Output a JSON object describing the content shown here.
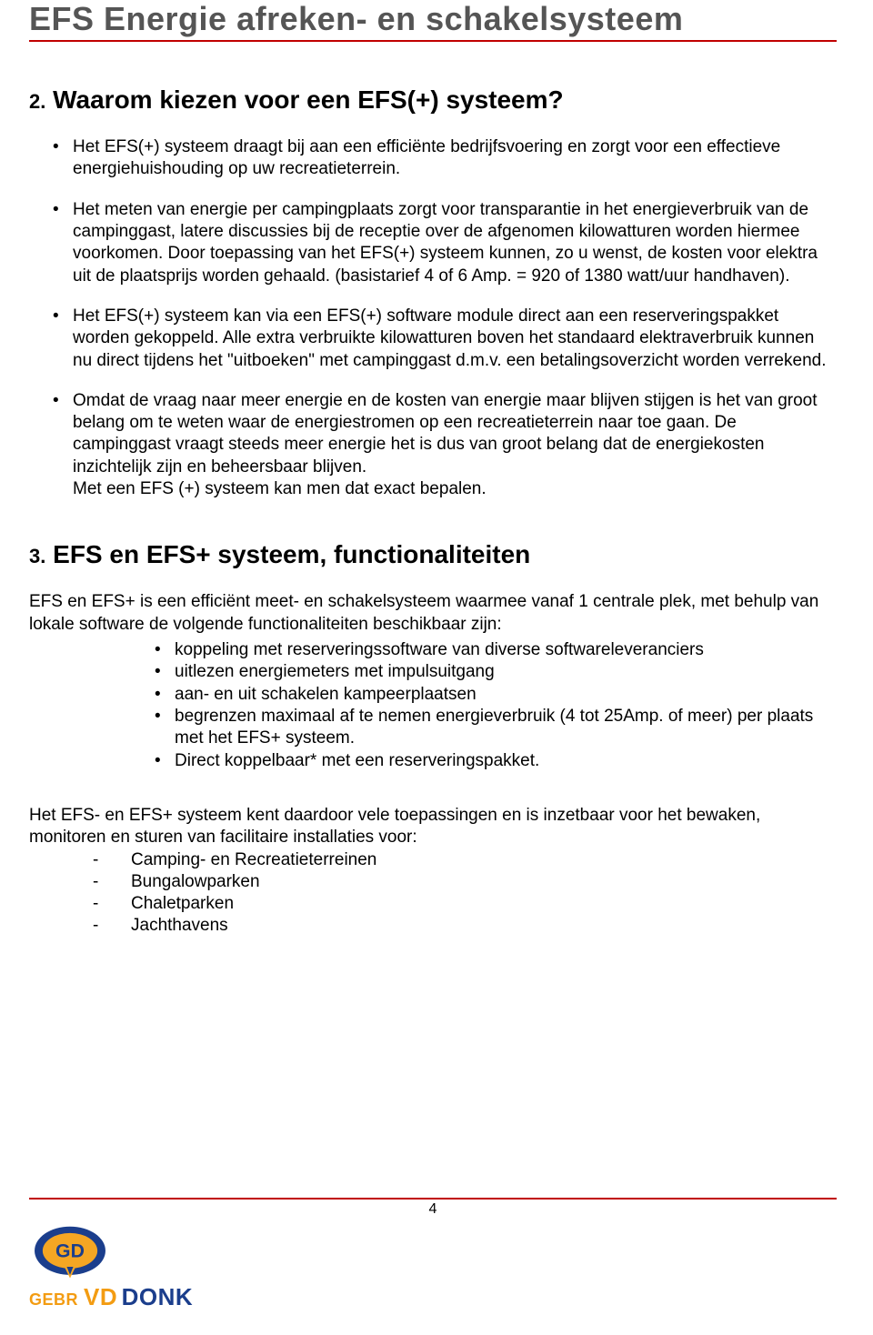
{
  "header": {
    "title": "EFS  Energie afreken- en schakelsysteem",
    "color": "#555555",
    "rule_color": "#c00000"
  },
  "section2": {
    "number": "2.",
    "title": "Waarom kiezen voor een EFS(+) systeem?",
    "bullets": [
      "Het EFS(+) systeem draagt bij aan een efficiënte bedrijfsvoering en zorgt voor een effectieve energiehuishouding op uw recreatieterrein.",
      "Het meten van energie per campingplaats zorgt voor transparantie in het energieverbruik van de campinggast, latere discussies bij de receptie over de afgenomen kilowatturen worden hiermee voorkomen. Door toepassing van het EFS(+) systeem kunnen, zo u wenst, de kosten voor elektra uit de plaatsprijs worden gehaald. (basistarief 4 of 6 Amp. = 920 of 1380 watt/uur handhaven).",
      "Het EFS(+) systeem kan via een EFS(+) software module direct aan een reserveringspakket worden gekoppeld. Alle extra verbruikte kilowatturen boven het standaard elektraverbruik kunnen nu direct tijdens het \"uitboeken\" met campinggast d.m.v. een betalingsoverzicht worden verrekend.",
      "Omdat de vraag naar meer energie en de kosten van energie maar blijven stijgen is het van groot belang om te weten waar de energiestromen op een recreatieterrein naar toe gaan. De campinggast vraagt steeds meer energie het is dus van groot belang dat de energiekosten inzichtelijk zijn en beheersbaar blijven.\nMet een EFS (+) systeem kan men dat exact bepalen."
    ]
  },
  "section3": {
    "number": "3.",
    "title": "EFS en EFS+ systeem, functionaliteiten",
    "intro": "EFS en EFS+ is een efficiënt meet- en schakelsysteem waarmee vanaf 1 centrale plek, met behulp van lokale software de volgende functionaliteiten beschikbaar zijn:",
    "func_items": [
      "koppeling met reserveringssoftware van diverse softwareleveranciers",
      "uitlezen energiemeters met impulsuitgang",
      "aan- en uit schakelen kampeerplaatsen",
      "begrenzen maximaal af te nemen energieverbruik (4 tot 25Amp. of meer) per plaats met het EFS+ systeem.",
      "Direct koppelbaar* met een reserveringspakket."
    ],
    "applications_intro": "Het EFS- en EFS+ systeem kent daardoor vele toepassingen en is inzetbaar voor het bewaken, monitoren en sturen van facilitaire installaties voor:",
    "app_items": [
      "Camping- en Recreatieterreinen",
      "Bungalowparken",
      "Chaletparken",
      "Jachthavens"
    ]
  },
  "footer": {
    "page_number": "4",
    "logo": {
      "shield_outer": "#1b3e8c",
      "shield_inner": "#f5a623",
      "text_gd": "GD",
      "gebr": "GEBR",
      "vd": "VD",
      "donk": "DONK",
      "color_orange": "#f39c12",
      "color_blue": "#1b3e8c"
    }
  },
  "style": {
    "body_fontsize": 19,
    "heading_fontsize": 28,
    "header_fontsize": 36,
    "text_color": "#000000",
    "background": "#ffffff"
  }
}
